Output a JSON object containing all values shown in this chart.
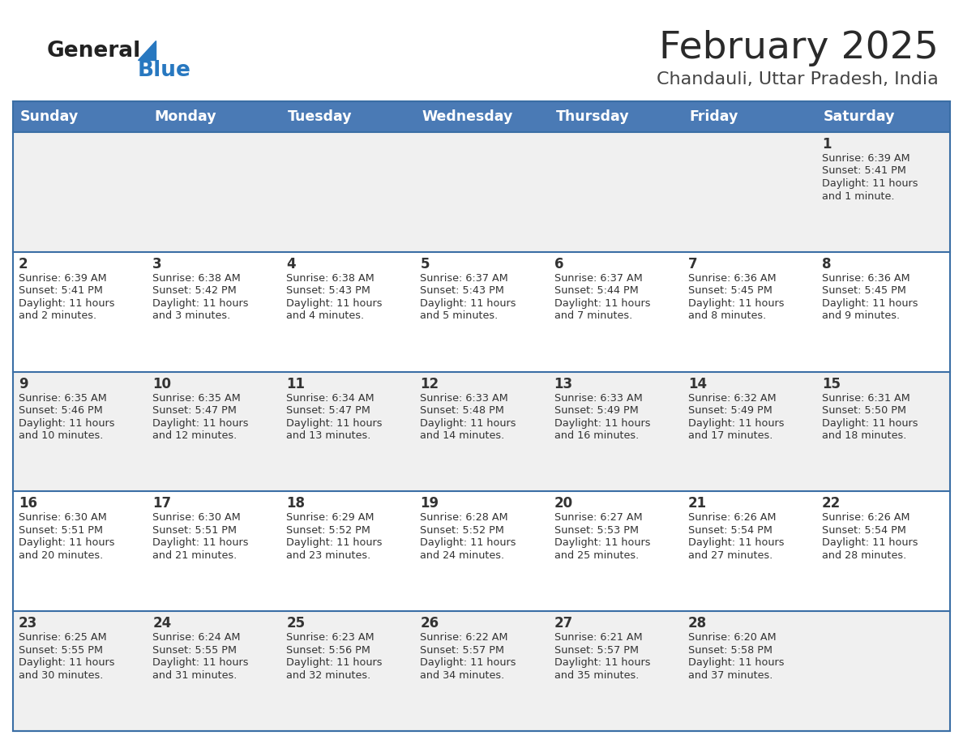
{
  "title": "February 2025",
  "subtitle": "Chandauli, Uttar Pradesh, India",
  "header_bg": "#4a7ab5",
  "header_text_color": "#ffffff",
  "day_names": [
    "Sunday",
    "Monday",
    "Tuesday",
    "Wednesday",
    "Thursday",
    "Friday",
    "Saturday"
  ],
  "cell_bg_odd": "#f0f0f0",
  "cell_bg_even": "#ffffff",
  "date_color": "#333333",
  "text_color": "#333333",
  "divider_color": "#3a6ea5",
  "logo_general_color": "#222222",
  "logo_blue_color": "#2878c0",
  "calendar": [
    [
      null,
      null,
      null,
      null,
      null,
      null,
      {
        "day": 1,
        "sunrise": "6:39 AM",
        "sunset": "5:41 PM",
        "daylight": "11 hours\nand 1 minute."
      }
    ],
    [
      {
        "day": 2,
        "sunrise": "6:39 AM",
        "sunset": "5:41 PM",
        "daylight": "11 hours\nand 2 minutes."
      },
      {
        "day": 3,
        "sunrise": "6:38 AM",
        "sunset": "5:42 PM",
        "daylight": "11 hours\nand 3 minutes."
      },
      {
        "day": 4,
        "sunrise": "6:38 AM",
        "sunset": "5:43 PM",
        "daylight": "11 hours\nand 4 minutes."
      },
      {
        "day": 5,
        "sunrise": "6:37 AM",
        "sunset": "5:43 PM",
        "daylight": "11 hours\nand 5 minutes."
      },
      {
        "day": 6,
        "sunrise": "6:37 AM",
        "sunset": "5:44 PM",
        "daylight": "11 hours\nand 7 minutes."
      },
      {
        "day": 7,
        "sunrise": "6:36 AM",
        "sunset": "5:45 PM",
        "daylight": "11 hours\nand 8 minutes."
      },
      {
        "day": 8,
        "sunrise": "6:36 AM",
        "sunset": "5:45 PM",
        "daylight": "11 hours\nand 9 minutes."
      }
    ],
    [
      {
        "day": 9,
        "sunrise": "6:35 AM",
        "sunset": "5:46 PM",
        "daylight": "11 hours\nand 10 minutes."
      },
      {
        "day": 10,
        "sunrise": "6:35 AM",
        "sunset": "5:47 PM",
        "daylight": "11 hours\nand 12 minutes."
      },
      {
        "day": 11,
        "sunrise": "6:34 AM",
        "sunset": "5:47 PM",
        "daylight": "11 hours\nand 13 minutes."
      },
      {
        "day": 12,
        "sunrise": "6:33 AM",
        "sunset": "5:48 PM",
        "daylight": "11 hours\nand 14 minutes."
      },
      {
        "day": 13,
        "sunrise": "6:33 AM",
        "sunset": "5:49 PM",
        "daylight": "11 hours\nand 16 minutes."
      },
      {
        "day": 14,
        "sunrise": "6:32 AM",
        "sunset": "5:49 PM",
        "daylight": "11 hours\nand 17 minutes."
      },
      {
        "day": 15,
        "sunrise": "6:31 AM",
        "sunset": "5:50 PM",
        "daylight": "11 hours\nand 18 minutes."
      }
    ],
    [
      {
        "day": 16,
        "sunrise": "6:30 AM",
        "sunset": "5:51 PM",
        "daylight": "11 hours\nand 20 minutes."
      },
      {
        "day": 17,
        "sunrise": "6:30 AM",
        "sunset": "5:51 PM",
        "daylight": "11 hours\nand 21 minutes."
      },
      {
        "day": 18,
        "sunrise": "6:29 AM",
        "sunset": "5:52 PM",
        "daylight": "11 hours\nand 23 minutes."
      },
      {
        "day": 19,
        "sunrise": "6:28 AM",
        "sunset": "5:52 PM",
        "daylight": "11 hours\nand 24 minutes."
      },
      {
        "day": 20,
        "sunrise": "6:27 AM",
        "sunset": "5:53 PM",
        "daylight": "11 hours\nand 25 minutes."
      },
      {
        "day": 21,
        "sunrise": "6:26 AM",
        "sunset": "5:54 PM",
        "daylight": "11 hours\nand 27 minutes."
      },
      {
        "day": 22,
        "sunrise": "6:26 AM",
        "sunset": "5:54 PM",
        "daylight": "11 hours\nand 28 minutes."
      }
    ],
    [
      {
        "day": 23,
        "sunrise": "6:25 AM",
        "sunset": "5:55 PM",
        "daylight": "11 hours\nand 30 minutes."
      },
      {
        "day": 24,
        "sunrise": "6:24 AM",
        "sunset": "5:55 PM",
        "daylight": "11 hours\nand 31 minutes."
      },
      {
        "day": 25,
        "sunrise": "6:23 AM",
        "sunset": "5:56 PM",
        "daylight": "11 hours\nand 32 minutes."
      },
      {
        "day": 26,
        "sunrise": "6:22 AM",
        "sunset": "5:57 PM",
        "daylight": "11 hours\nand 34 minutes."
      },
      {
        "day": 27,
        "sunrise": "6:21 AM",
        "sunset": "5:57 PM",
        "daylight": "11 hours\nand 35 minutes."
      },
      {
        "day": 28,
        "sunrise": "6:20 AM",
        "sunset": "5:58 PM",
        "daylight": "11 hours\nand 37 minutes."
      },
      null
    ]
  ]
}
